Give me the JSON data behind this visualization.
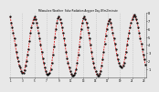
{
  "title": "Milwaukee Weather  Solar Radiation Avg per Day W/m2/minute",
  "background_color": "#e8e8e8",
  "plot_bg_color": "#e8e8e8",
  "line_color": "#dd0000",
  "marker_color": "#000000",
  "grid_color": "#bbbbbb",
  "ylim": [
    0,
    8
  ],
  "ytick_labels": [
    "8",
    "7",
    "6",
    "5",
    "4",
    "3",
    "2",
    "1"
  ],
  "ytick_vals": [
    8,
    7,
    6,
    5,
    4,
    3,
    2,
    1
  ],
  "y_values": [
    7.5,
    6.8,
    6.2,
    5.5,
    4.8,
    4.0,
    3.2,
    2.5,
    2.0,
    1.5,
    1.2,
    0.8,
    0.5,
    0.6,
    0.9,
    1.4,
    2.0,
    2.8,
    3.5,
    4.5,
    5.5,
    6.2,
    6.8,
    7.2,
    7.5,
    7.2,
    6.8,
    6.2,
    5.5,
    4.8,
    4.0,
    3.2,
    2.4,
    1.8,
    1.2,
    0.8,
    0.4,
    0.3,
    0.4,
    0.6,
    1.0,
    1.8,
    2.8,
    3.8,
    5.0,
    6.0,
    6.8,
    7.3,
    7.5,
    7.2,
    6.8,
    6.2,
    5.5,
    4.8,
    4.0,
    3.2,
    2.4,
    1.8,
    1.2,
    0.8,
    0.4,
    0.2,
    0.2,
    0.3,
    0.6,
    1.0,
    1.8,
    2.8,
    3.8,
    5.0,
    6.0,
    6.8,
    7.3,
    7.5,
    7.2,
    6.8,
    6.2,
    5.5,
    4.8,
    4.0,
    3.2,
    2.4,
    1.8,
    1.2,
    0.8,
    0.4,
    0.2,
    0.2,
    0.4,
    0.8,
    1.4,
    2.2,
    3.2,
    4.2,
    5.2,
    6.0,
    6.6,
    7.0,
    7.2,
    6.8,
    6.2,
    5.5,
    4.8,
    4.2,
    3.5,
    2.8,
    2.2,
    1.8,
    1.5,
    1.3,
    1.2,
    1.4,
    1.8,
    2.5,
    3.2,
    4.0,
    4.8,
    5.5,
    6.2,
    6.8,
    7.2,
    7.5,
    7.8,
    7.5,
    7.2,
    6.8,
    6.2,
    5.5,
    4.8,
    4.2,
    3.5,
    2.8,
    2.2,
    1.6
  ],
  "n_points": 134,
  "x_tick_interval": 12,
  "x_tick_labels": [
    "1",
    "3",
    "5",
    "7",
    "9",
    "11",
    "13",
    "15",
    "17",
    "19",
    "21",
    "23"
  ]
}
